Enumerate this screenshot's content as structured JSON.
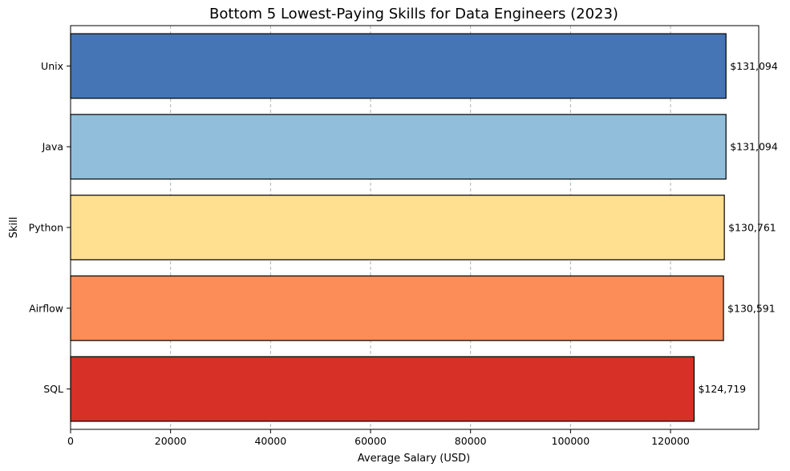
{
  "chart_data": {
    "type": "bar",
    "orientation": "horizontal",
    "title": "Bottom 5 Lowest-Paying Skills for Data Engineers (2023)",
    "xlabel": "Average Salary (USD)",
    "ylabel": "Skill",
    "categories": [
      "Unix",
      "Java",
      "Python",
      "Airflow",
      "SQL"
    ],
    "values": [
      131094,
      131094,
      130761,
      130591,
      124719
    ],
    "value_labels": [
      "$131,094",
      "$131,094",
      "$130,761",
      "$130,591",
      "$124,719"
    ],
    "colors": [
      "#4575b4",
      "#91bfdb",
      "#fee090",
      "#fc8d59",
      "#d73027"
    ],
    "xlim": [
      0,
      137640
    ],
    "xticks": [
      0,
      20000,
      40000,
      60000,
      80000,
      100000,
      120000
    ],
    "xtick_labels": [
      "0",
      "20000",
      "40000",
      "60000",
      "80000",
      "100000",
      "120000"
    ],
    "grid": {
      "x": true,
      "y": false,
      "style": "dashed"
    },
    "legend": null
  }
}
